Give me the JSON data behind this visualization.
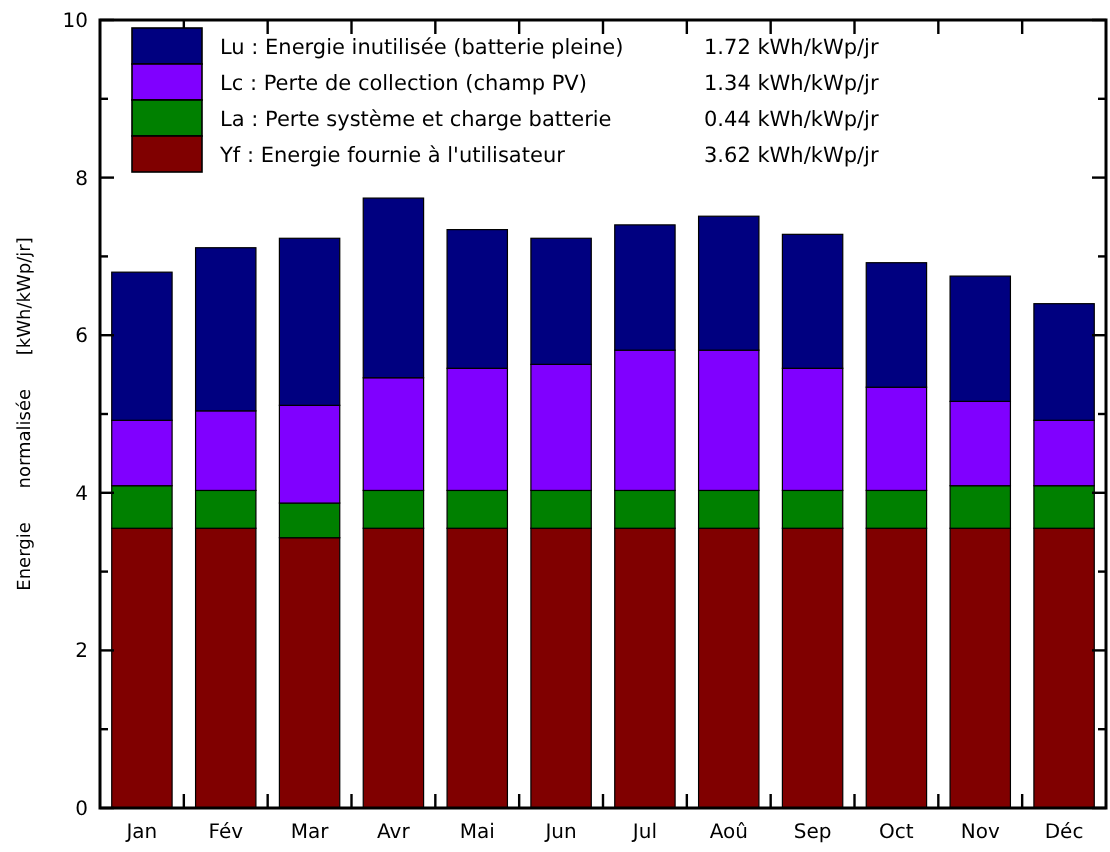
{
  "chart_data": {
    "type": "bar",
    "stacked": true,
    "categories": [
      "Jan",
      "Fév",
      "Mar",
      "Avr",
      "Mai",
      "Jun",
      "Jul",
      "Aoû",
      "Sep",
      "Oct",
      "Nov",
      "Déc"
    ],
    "series": [
      {
        "name": "Yf : Energie fournie à l'utilisateur",
        "color": "#800000",
        "values": [
          3.55,
          3.55,
          3.43,
          3.55,
          3.55,
          3.55,
          3.55,
          3.55,
          3.55,
          3.55,
          3.55,
          3.55
        ]
      },
      {
        "name": "La : Perte système et charge batterie",
        "color": "#008000",
        "values": [
          0.54,
          0.48,
          0.44,
          0.48,
          0.48,
          0.48,
          0.48,
          0.48,
          0.48,
          0.48,
          0.54,
          0.54
        ]
      },
      {
        "name": "Lc : Perte de collection (champ PV)",
        "color": "#8000ff",
        "values": [
          0.83,
          1.01,
          1.24,
          1.43,
          1.55,
          1.6,
          1.78,
          1.78,
          1.55,
          1.31,
          1.07,
          0.83
        ]
      },
      {
        "name": "Lu : Energie inutilisée (batterie pleine)",
        "color": "#000080",
        "values": [
          1.88,
          2.07,
          2.12,
          2.28,
          1.76,
          1.6,
          1.59,
          1.7,
          1.7,
          1.58,
          1.59,
          1.48
        ]
      }
    ],
    "ylabel": "Energie normalisée [kWh/kWp/jr]",
    "ylim": [
      0,
      10
    ],
    "yticks": [
      0,
      {
        "value": 1,
        "label": null
      },
      2,
      {
        "value": 3,
        "label": null
      },
      4,
      {
        "value": 5,
        "label": null
      },
      6,
      {
        "value": 7,
        "label": null
      },
      8,
      {
        "value": 9,
        "label": null
      },
      10
    ],
    "legend": "top left",
    "annotations": [
      "1.72 kWh/kWp/jr",
      "1.34 kWh/kWp/jr",
      "0.44 kWh/kWp/jr",
      "3.62 kWh/kWp/jr"
    ]
  }
}
